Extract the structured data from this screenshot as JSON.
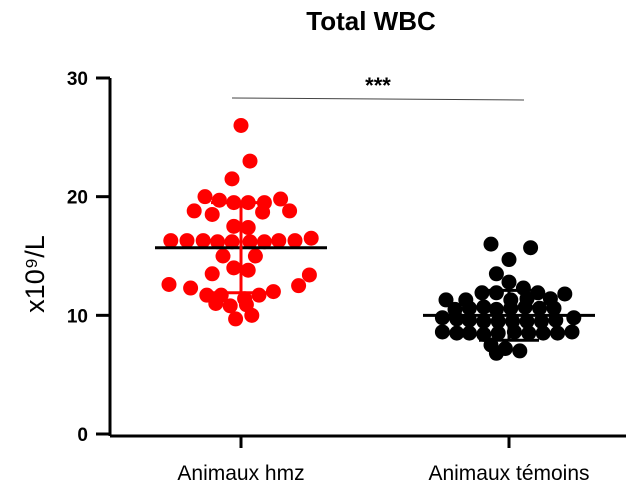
{
  "chart_data": {
    "type": "scatter",
    "title": "Total WBC",
    "ylabel": "x10⁹/L",
    "ylim": [
      0,
      30
    ],
    "yticks": [
      0,
      10,
      20,
      30
    ],
    "categories": [
      "Animaux hmz",
      "Animaux témoins"
    ],
    "significance": "***",
    "series": [
      {
        "color": "#ff0000",
        "mean": 15.7,
        "sd_low": 11.9,
        "sd_high": 19.5,
        "points": [
          {
            "offset": 0.0,
            "y": 26.0
          },
          {
            "offset": 0.1,
            "y": 23.0
          },
          {
            "offset": -0.1,
            "y": 21.5
          },
          {
            "offset": -0.4,
            "y": 20.0
          },
          {
            "offset": 0.44,
            "y": 19.8
          },
          {
            "offset": -0.24,
            "y": 19.7
          },
          {
            "offset": 0.26,
            "y": 19.5
          },
          {
            "offset": -0.08,
            "y": 19.5
          },
          {
            "offset": 0.08,
            "y": 19.5
          },
          {
            "offset": -0.52,
            "y": 18.8
          },
          {
            "offset": 0.54,
            "y": 18.8
          },
          {
            "offset": 0.24,
            "y": 18.7
          },
          {
            "offset": -0.32,
            "y": 18.5
          },
          {
            "offset": -0.08,
            "y": 17.5
          },
          {
            "offset": 0.08,
            "y": 17.4
          },
          {
            "offset": -0.78,
            "y": 16.3
          },
          {
            "offset": -0.6,
            "y": 16.3
          },
          {
            "offset": -0.42,
            "y": 16.3
          },
          {
            "offset": -0.26,
            "y": 16.2
          },
          {
            "offset": -0.1,
            "y": 16.2
          },
          {
            "offset": 0.1,
            "y": 16.2
          },
          {
            "offset": 0.26,
            "y": 16.2
          },
          {
            "offset": 0.42,
            "y": 16.3
          },
          {
            "offset": 0.6,
            "y": 16.3
          },
          {
            "offset": 0.78,
            "y": 16.5
          },
          {
            "offset": -0.2,
            "y": 15.0
          },
          {
            "offset": 0.16,
            "y": 15.0
          },
          {
            "offset": -0.08,
            "y": 14.0
          },
          {
            "offset": 0.08,
            "y": 13.8
          },
          {
            "offset": -0.32,
            "y": 13.5
          },
          {
            "offset": 0.76,
            "y": 13.4
          },
          {
            "offset": -0.8,
            "y": 12.6
          },
          {
            "offset": 0.64,
            "y": 12.5
          },
          {
            "offset": -0.56,
            "y": 12.3
          },
          {
            "offset": 0.36,
            "y": 12.0
          },
          {
            "offset": -0.38,
            "y": 11.7
          },
          {
            "offset": 0.2,
            "y": 11.7
          },
          {
            "offset": -0.22,
            "y": 11.7
          },
          {
            "offset": 0.04,
            "y": 11.4
          },
          {
            "offset": -0.28,
            "y": 11.0
          },
          {
            "offset": 0.06,
            "y": 10.9
          },
          {
            "offset": -0.12,
            "y": 10.8
          },
          {
            "offset": 0.12,
            "y": 10.0
          },
          {
            "offset": -0.06,
            "y": 9.7
          }
        ]
      },
      {
        "color": "#000000",
        "mean": 10.0,
        "sd_low": 7.9,
        "sd_high": 12.1,
        "points": [
          {
            "offset": -0.2,
            "y": 16.0
          },
          {
            "offset": 0.24,
            "y": 15.7
          },
          {
            "offset": 0.0,
            "y": 14.7
          },
          {
            "offset": -0.14,
            "y": 13.5
          },
          {
            "offset": 0.0,
            "y": 12.8
          },
          {
            "offset": 0.16,
            "y": 12.3
          },
          {
            "offset": -0.3,
            "y": 11.9
          },
          {
            "offset": -0.14,
            "y": 11.9
          },
          {
            "offset": 0.32,
            "y": 11.9
          },
          {
            "offset": 0.62,
            "y": 11.8
          },
          {
            "offset": -0.7,
            "y": 11.3
          },
          {
            "offset": -0.48,
            "y": 11.3
          },
          {
            "offset": 0.02,
            "y": 11.3
          },
          {
            "offset": 0.2,
            "y": 11.4
          },
          {
            "offset": 0.46,
            "y": 11.4
          },
          {
            "offset": -0.6,
            "y": 10.5
          },
          {
            "offset": -0.44,
            "y": 10.6
          },
          {
            "offset": -0.28,
            "y": 10.7
          },
          {
            "offset": -0.14,
            "y": 10.5
          },
          {
            "offset": 0.02,
            "y": 10.6
          },
          {
            "offset": 0.18,
            "y": 10.7
          },
          {
            "offset": 0.34,
            "y": 10.6
          },
          {
            "offset": 0.5,
            "y": 10.6
          },
          {
            "offset": -0.74,
            "y": 9.8
          },
          {
            "offset": -0.58,
            "y": 9.7
          },
          {
            "offset": -0.44,
            "y": 9.6
          },
          {
            "offset": -0.28,
            "y": 9.5
          },
          {
            "offset": -0.12,
            "y": 9.5
          },
          {
            "offset": 0.04,
            "y": 9.5
          },
          {
            "offset": 0.2,
            "y": 9.5
          },
          {
            "offset": 0.36,
            "y": 9.5
          },
          {
            "offset": 0.52,
            "y": 9.6
          },
          {
            "offset": 0.72,
            "y": 9.8
          },
          {
            "offset": -0.74,
            "y": 8.6
          },
          {
            "offset": -0.58,
            "y": 8.5
          },
          {
            "offset": -0.44,
            "y": 8.5
          },
          {
            "offset": -0.28,
            "y": 8.4
          },
          {
            "offset": -0.12,
            "y": 8.5
          },
          {
            "offset": 0.06,
            "y": 8.6
          },
          {
            "offset": 0.22,
            "y": 8.5
          },
          {
            "offset": 0.38,
            "y": 8.5
          },
          {
            "offset": 0.54,
            "y": 8.5
          },
          {
            "offset": 0.7,
            "y": 8.6
          },
          {
            "offset": -0.2,
            "y": 7.5
          },
          {
            "offset": -0.04,
            "y": 7.2
          },
          {
            "offset": 0.12,
            "y": 7.0
          },
          {
            "offset": -0.14,
            "y": 6.8
          }
        ]
      }
    ]
  }
}
